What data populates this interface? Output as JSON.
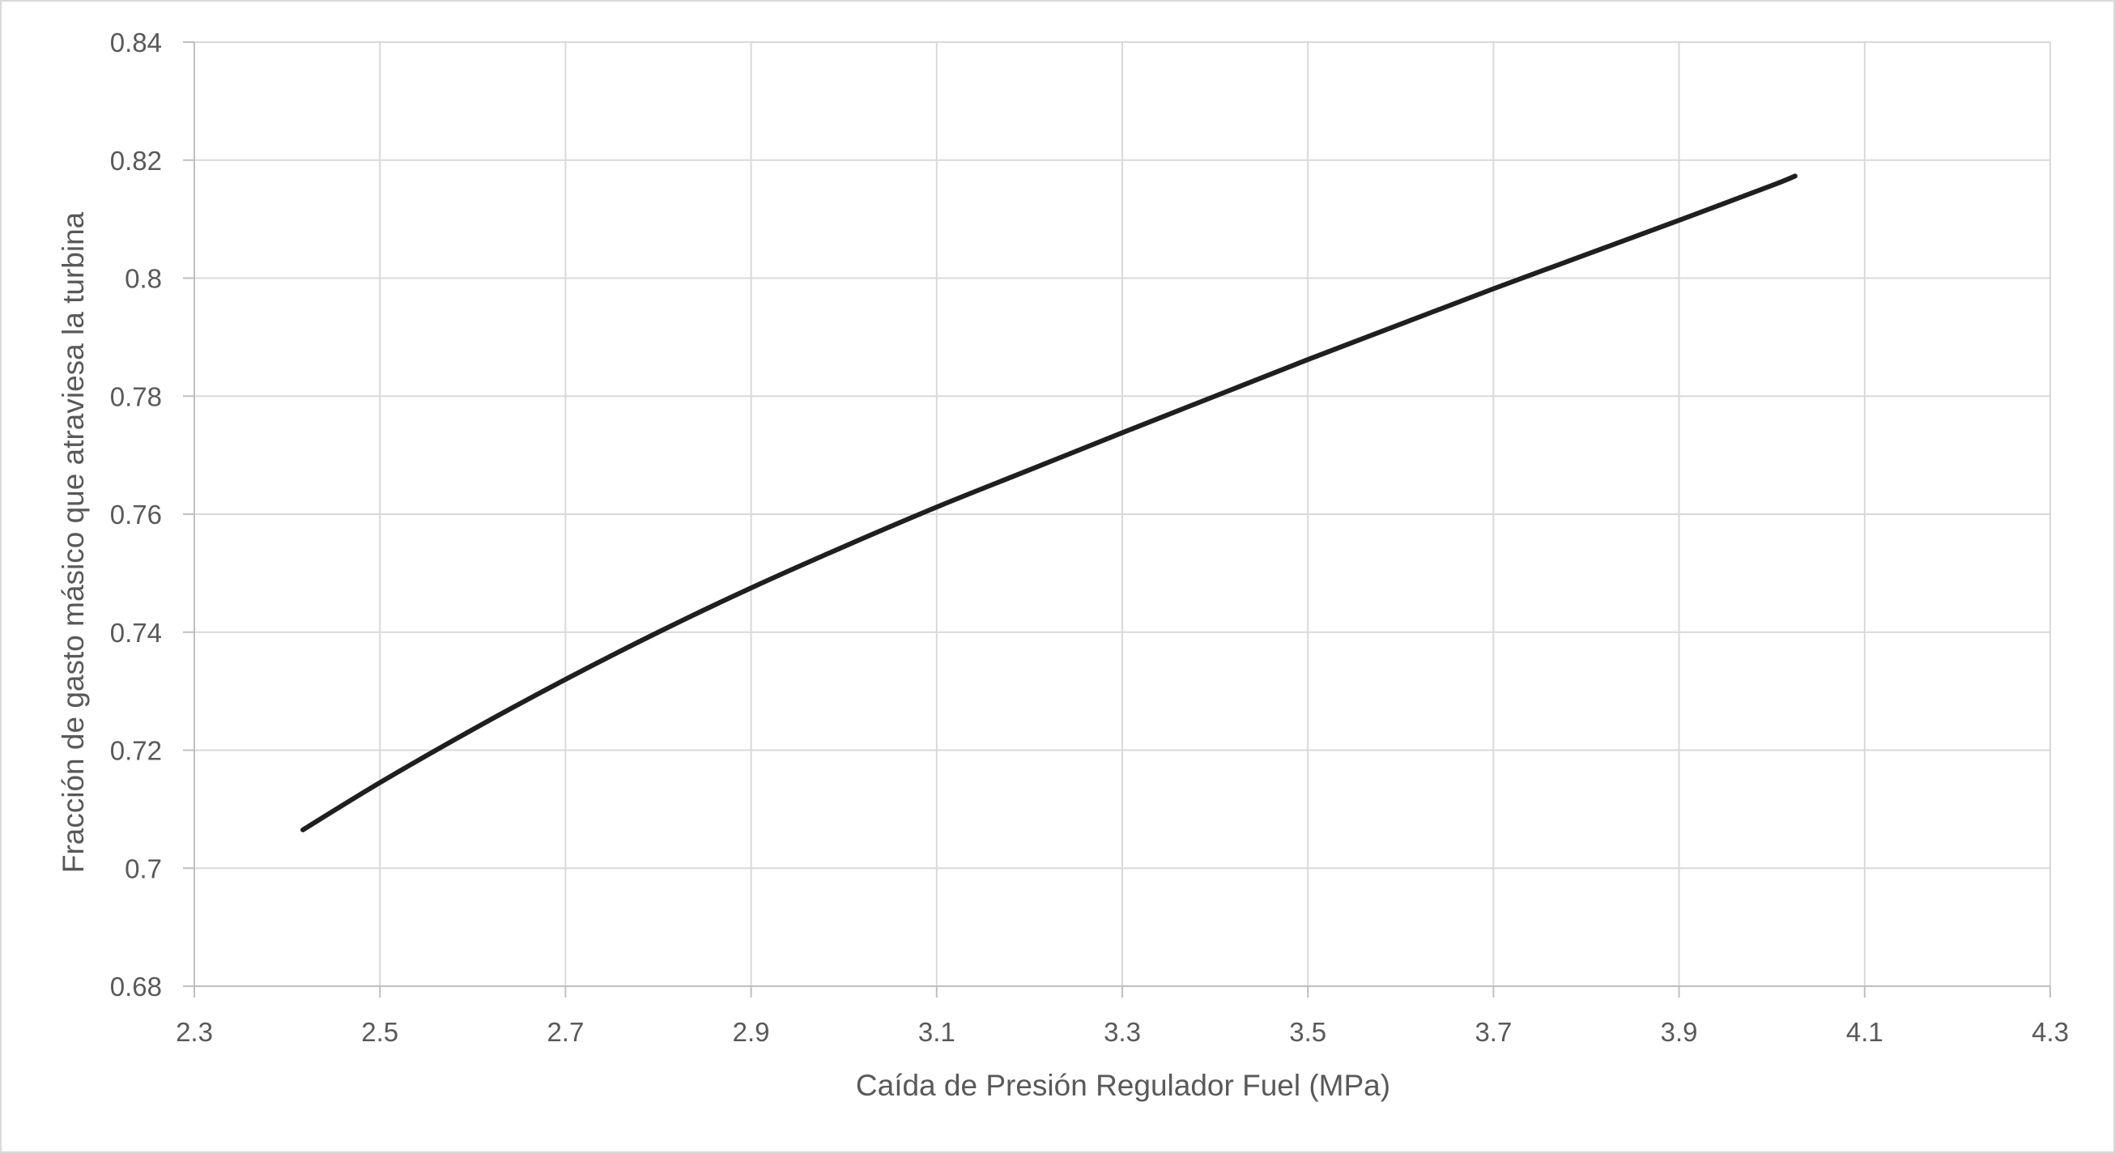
{
  "chart_data": {
    "type": "line",
    "title": "",
    "xlabel": "Caída de Presión Regulador Fuel (MPa)",
    "ylabel": "Fracción de gasto másico que atraviesa la turbina",
    "xlim": [
      2.3,
      4.3
    ],
    "ylim": [
      0.68,
      0.84
    ],
    "x_ticks": [
      "2.3",
      "2.5",
      "2.7",
      "2.9",
      "3.1",
      "3.3",
      "3.5",
      "3.7",
      "3.9",
      "4.1",
      "4.3"
    ],
    "y_ticks": [
      "0.68",
      "0.7",
      "0.72",
      "0.74",
      "0.76",
      "0.78",
      "0.8",
      "0.82",
      "0.84"
    ],
    "grid": true,
    "legend": "none",
    "series": [
      {
        "color": "#1f1f1f",
        "x": [
          2.417,
          2.5,
          2.6,
          2.7,
          2.8,
          2.9,
          3.0,
          3.1,
          3.2,
          3.3,
          3.4,
          3.5,
          3.6,
          3.7,
          3.8,
          3.9,
          4.0,
          4.025
        ],
        "y": [
          0.7065,
          0.7145,
          0.7235,
          0.732,
          0.74,
          0.7475,
          0.7545,
          0.7612,
          0.7675,
          0.7738,
          0.78,
          0.7862,
          0.7922,
          0.7982,
          0.804,
          0.8098,
          0.8157,
          0.8173
        ]
      }
    ]
  }
}
